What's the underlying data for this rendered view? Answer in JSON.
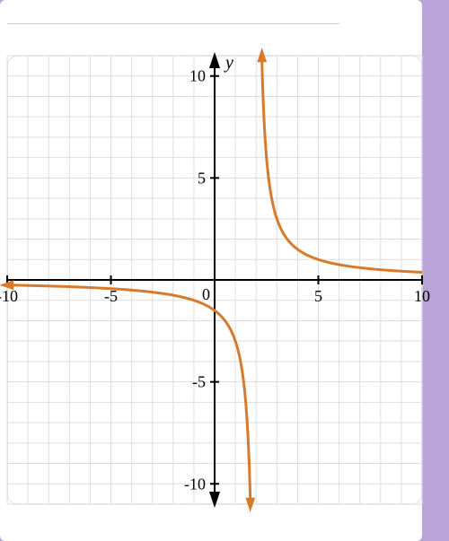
{
  "chart": {
    "type": "line",
    "background_color": "#ffffff",
    "page_background": "#b9a5d9",
    "grid_color": "#dedede",
    "axis_color": "#000000",
    "curve_color": "#d87a2a",
    "curve_width": 3,
    "axis_width": 2,
    "grid_width": 1,
    "y_label": "y",
    "y_label_fontsize": 20,
    "tick_fontsize": 18,
    "xlim": [
      -10,
      10
    ],
    "ylim": [
      -11,
      11
    ],
    "xtick_step": 5,
    "ytick_step": 5,
    "x_ticks": [
      -10,
      -5,
      0,
      5,
      10
    ],
    "y_ticks": [
      -10,
      -5,
      5,
      10
    ],
    "asymptote_x": 2,
    "hyperbola_k": 3,
    "left_branch": {
      "x_start": -10,
      "x_end": 1.72,
      "arrow_start": true,
      "arrow_end": true
    },
    "right_branch": {
      "x_start": 2.28,
      "x_end": 10,
      "arrow_start": true,
      "arrow_end": false
    },
    "y_axis_arrows": true
  }
}
